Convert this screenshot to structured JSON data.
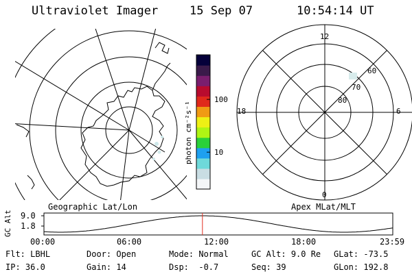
{
  "header": {
    "instrument": "Ultraviolet Imager",
    "date": "15 Sep 07",
    "time": "10:54:14 UT"
  },
  "colorbar": {
    "unit_label": "photon cm⁻²s⁻¹",
    "ticks": [
      {
        "label": "100",
        "value": 100
      },
      {
        "label": "10",
        "value": 10
      }
    ],
    "range": [
      2,
      700
    ],
    "scale": "log",
    "colors": [
      "#f4f6f8",
      "#c9dde3",
      "#6ed9da",
      "#1ea0f0",
      "#2ad13a",
      "#aef514",
      "#eef015",
      "#f09a14",
      "#e0291b",
      "#b80b2e",
      "#7a1e6e",
      "#3a1a4a",
      "#05003a"
    ]
  },
  "left_panel": {
    "caption": "Geographic Lat/Lon"
  },
  "right_panel": {
    "caption": "Apex MLat/MLT",
    "mlt_labels": {
      "top": "12",
      "bottom": "0",
      "left": "18",
      "right": "6"
    },
    "lat_labels": [
      "60",
      "70",
      "80"
    ]
  },
  "timeline": {
    "ylabel": "GC Alt",
    "y_ticks": [
      "9.0",
      "1.8"
    ],
    "x_ticks": [
      "00:00",
      "06:00",
      "12:00",
      "18:00",
      "23:59"
    ],
    "current_time_hours": 10.904,
    "marker_color": "#e03020"
  },
  "status": {
    "row1": [
      {
        "label": "Flt:",
        "value": "LBHL"
      },
      {
        "label": "Door:",
        "value": "Open"
      },
      {
        "label": "Mode:",
        "value": "Normal"
      },
      {
        "label": "GC Alt:",
        "value": "9.0 Re"
      },
      {
        "label": "GLat:",
        "value": "-73.5"
      }
    ],
    "row2": [
      {
        "label": "IP:",
        "value": "36.0"
      },
      {
        "label": "Gain:",
        "value": "14"
      },
      {
        "label": "Dsp:",
        "value": "  -0.7"
      },
      {
        "label": "Seq:",
        "value": "39"
      },
      {
        "label": "GLon:",
        "value": "192.8"
      }
    ]
  }
}
